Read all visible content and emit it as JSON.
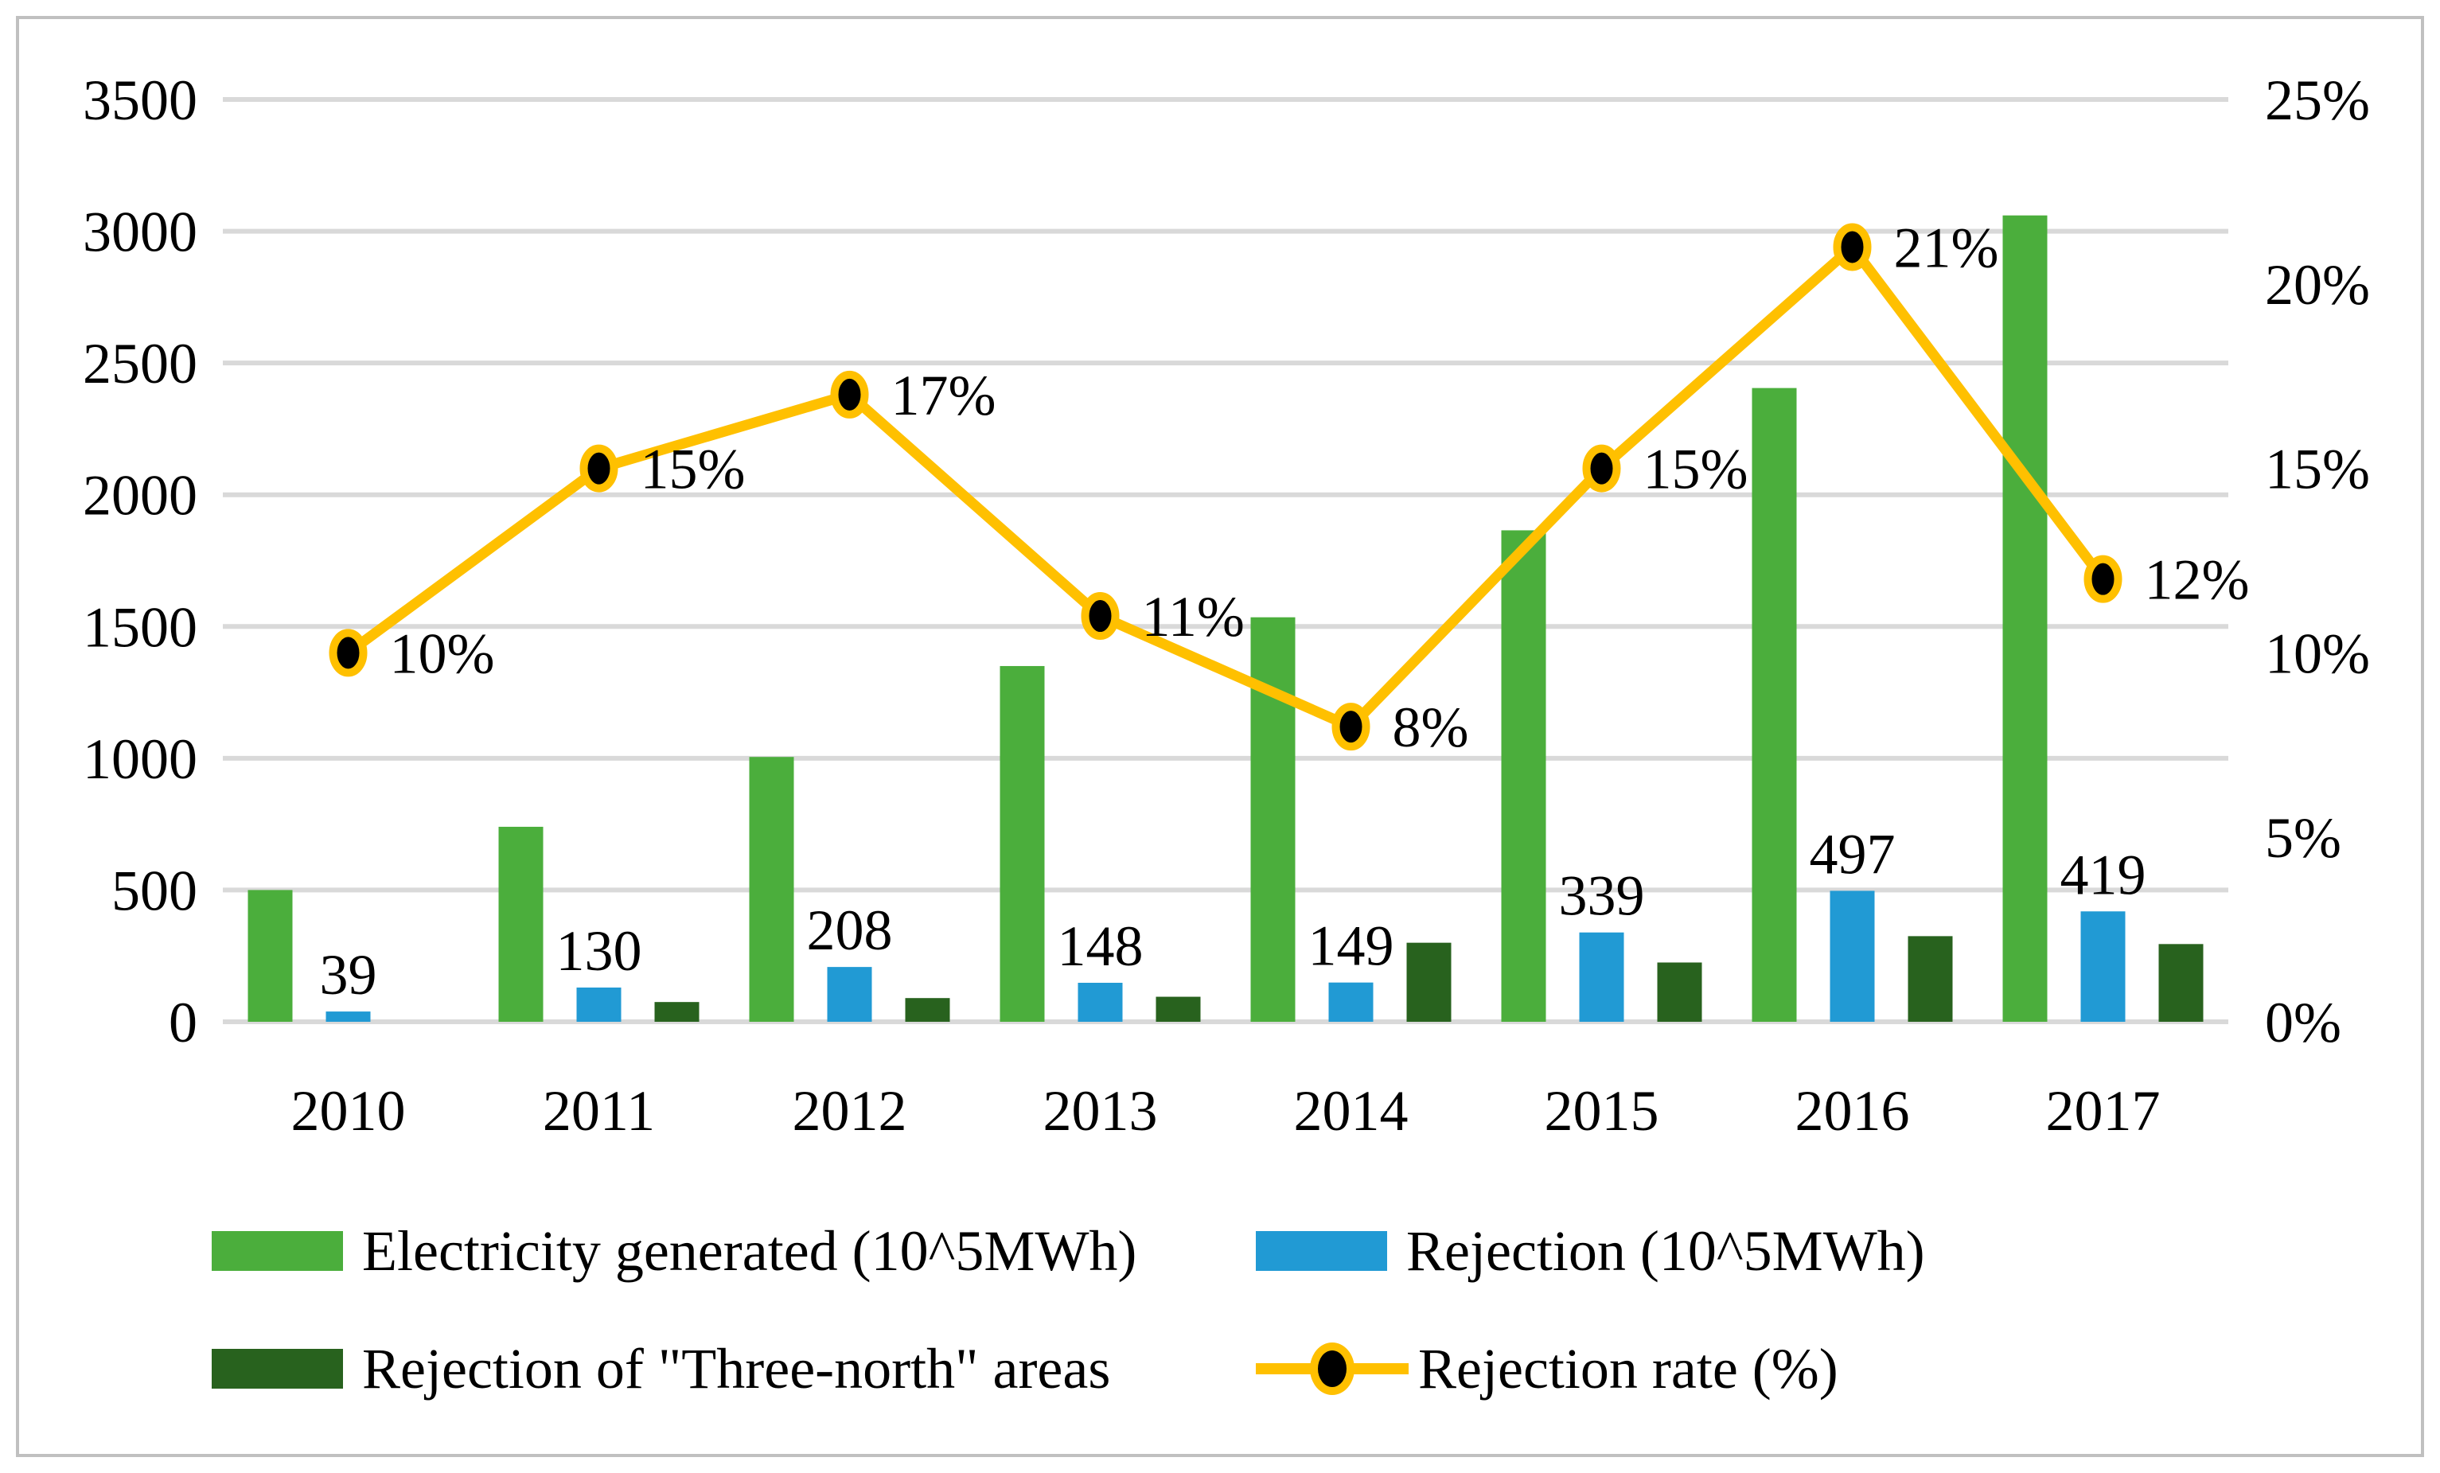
{
  "figure": {
    "colors": {
      "background": "#ffffff",
      "frame_border": "#c0c0c0",
      "gridline": "#d9d9d9",
      "text": "#000000"
    }
  },
  "chart_data": {
    "type": "bar+line combo",
    "title": "",
    "xlabel": "",
    "ylabel": "",
    "grid": true,
    "legend_position": "bottom",
    "categories": [
      "2010",
      "2011",
      "2012",
      "2013",
      "2014",
      "2015",
      "2016",
      "2017"
    ],
    "left_axis": {
      "min": 0,
      "max": 3500,
      "step": 500,
      "ticks": [
        "0",
        "500",
        "1000",
        "1500",
        "2000",
        "2500",
        "3000",
        "3500"
      ]
    },
    "right_axis": {
      "min": 0,
      "max": 25,
      "step": 5,
      "ticks": [
        "0%",
        "5%",
        "10%",
        "15%",
        "20%",
        "25%"
      ]
    },
    "series": [
      {
        "name": "Electricity generated (10^5MWh)",
        "type": "bar",
        "axis": "left",
        "color": "#4bae3c",
        "values": [
          500,
          740,
          1005,
          1350,
          1535,
          1865,
          2405,
          3060
        ]
      },
      {
        "name": "Rejection (10^5MWh)",
        "type": "bar",
        "axis": "left",
        "color": "#219ad4",
        "values": [
          39,
          130,
          208,
          148,
          149,
          339,
          497,
          419
        ],
        "data_labels": [
          "39",
          "130",
          "208",
          "148",
          "149",
          "339",
          "497",
          "419"
        ]
      },
      {
        "name": "Rejection of \"Three-north\" areas",
        "type": "bar",
        "axis": "left",
        "color": "#28621e",
        "values": [
          0,
          75,
          90,
          95,
          300,
          225,
          325,
          295
        ]
      },
      {
        "name": "Rejection rate (%)",
        "type": "line",
        "axis": "right",
        "color": "#ffc000",
        "marker_fill": "#000000",
        "marker_ring": "#ffc000",
        "values": [
          10,
          15,
          17,
          11,
          8,
          15,
          21,
          12
        ],
        "point_labels": [
          "10%",
          "15%",
          "17%",
          "11%",
          "8%",
          "15%",
          "21%",
          "12%"
        ]
      }
    ]
  }
}
